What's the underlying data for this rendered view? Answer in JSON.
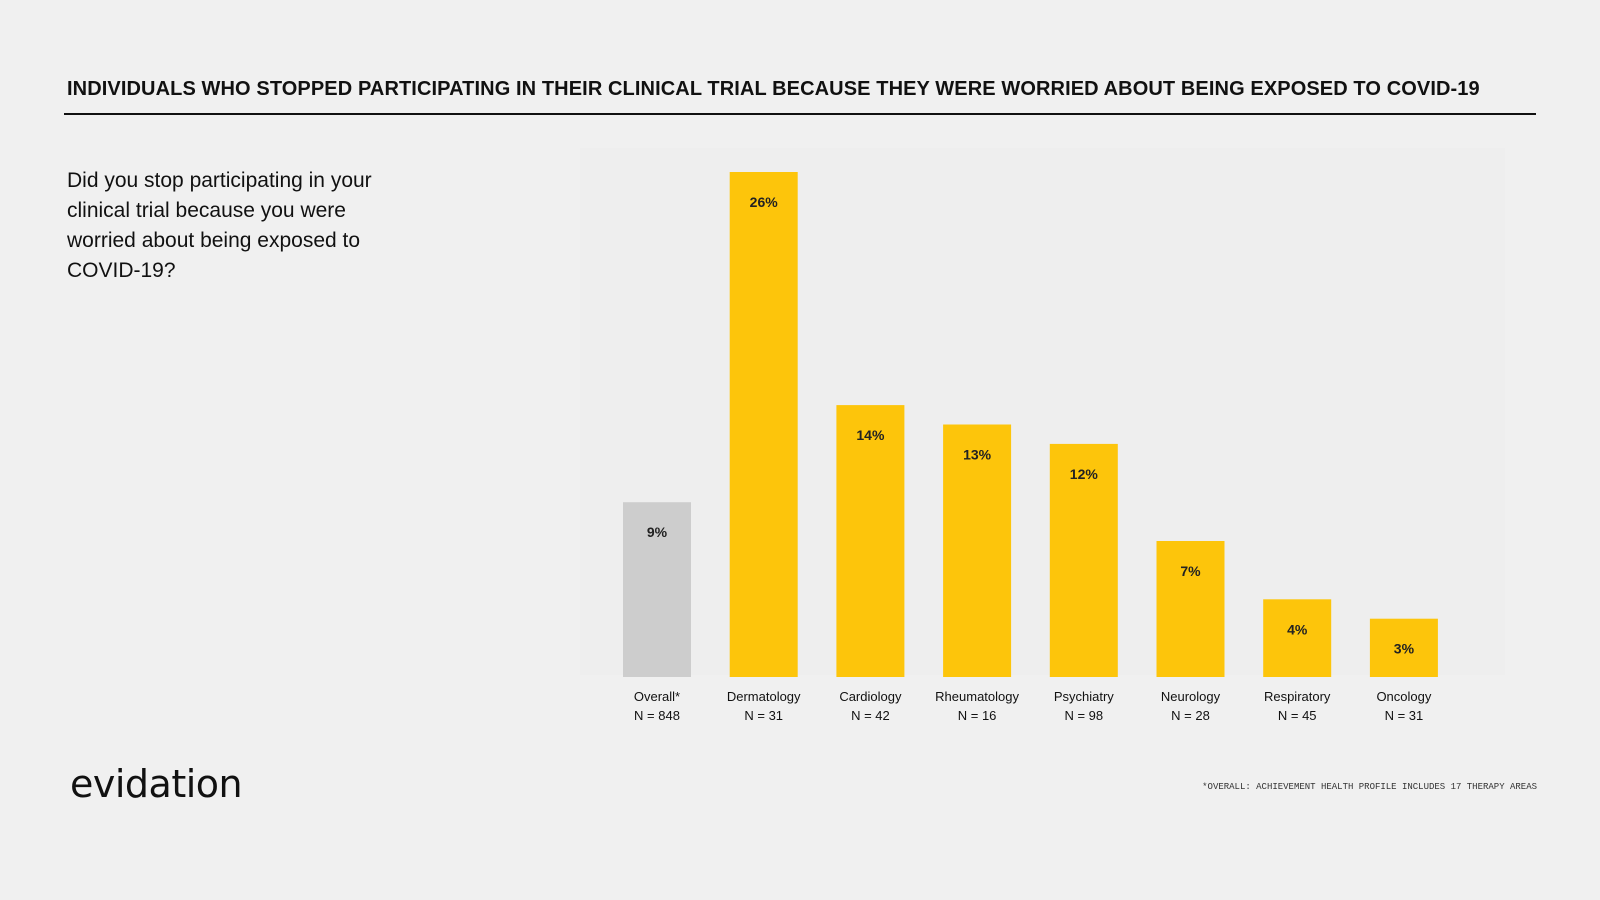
{
  "header": {
    "title": "INDIVIDUALS WHO STOPPED PARTICIPATING IN THEIR CLINICAL TRIAL BECAUSE THEY WERE WORRIED ABOUT BEING EXPOSED TO COVID-19"
  },
  "question": "Did you stop participating in your clinical trial because you were worried about being exposed to COVID-19?",
  "brand": {
    "logo_text": "evidation"
  },
  "footnote": "*OVERALL: ACHIEVEMENT HEALTH PROFILE INCLUDES 17 THERAPY AREAS",
  "colors": {
    "highlight": "#fdc50b",
    "overall": "#cdcdcd",
    "background": "#f0f0f0"
  },
  "chart_data": {
    "type": "bar",
    "title": "INDIVIDUALS WHO STOPPED PARTICIPATING IN THEIR CLINICAL TRIAL BECAUSE THEY WERE WORRIED ABOUT BEING EXPOSED TO COVID-19",
    "xlabel": "",
    "ylabel": "",
    "ylim": [
      0,
      26
    ],
    "categories": [
      "Overall*",
      "Dermatology",
      "Cardiology",
      "Rheumatology",
      "Psychiatry",
      "Neurology",
      "Respiratory",
      "Oncology"
    ],
    "sample_sizes": [
      "N = 848",
      "N = 31",
      "N = 42",
      "N = 16",
      "N = 98",
      "N = 28",
      "N = 45",
      "N = 31"
    ],
    "values": [
      9,
      26,
      14,
      13,
      12,
      7,
      4,
      3
    ],
    "value_labels": [
      "9%",
      "26%",
      "14%",
      "13%",
      "12%",
      "7%",
      "4%",
      "3%"
    ],
    "unit": "%"
  }
}
